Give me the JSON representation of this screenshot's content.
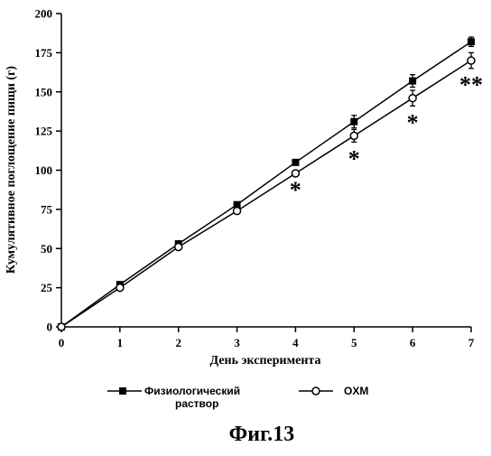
{
  "chart_data": {
    "type": "line",
    "xlabel": "День эксперимента",
    "ylabel": "Кумулятивное поглощение пищи (г)",
    "x": [
      0,
      1,
      2,
      3,
      4,
      5,
      6,
      7
    ],
    "xlim": [
      0,
      7
    ],
    "ylim": [
      0,
      200
    ],
    "xticks": [
      "0",
      "1",
      "2",
      "3",
      "4",
      "5",
      "6",
      "7"
    ],
    "yticks": [
      "0",
      "25",
      "50",
      "75",
      "100",
      "125",
      "150",
      "175",
      "200"
    ],
    "grid": false,
    "legend_position": "bottom",
    "series": [
      {
        "name": "Физиологический раствор",
        "marker": "filled-square",
        "values": [
          0,
          27,
          53,
          78,
          105,
          131,
          157,
          182
        ],
        "errors": [
          0,
          0,
          0,
          0,
          0,
          4,
          4,
          3
        ]
      },
      {
        "name": "OXM",
        "marker": "open-circle",
        "values": [
          0,
          25,
          51,
          74,
          98,
          122,
          146,
          170
        ],
        "errors": [
          0,
          0,
          0,
          0,
          0,
          4,
          5,
          5
        ]
      }
    ],
    "annotations": [
      {
        "x": 4,
        "label": "*"
      },
      {
        "x": 5,
        "label": "*"
      },
      {
        "x": 6,
        "label": "*"
      },
      {
        "x": 7,
        "label": "**"
      }
    ],
    "legend": {
      "series1_line1": "Физиологический",
      "series1_line2": "раствор",
      "series2": "OXM"
    }
  },
  "caption": "Фиг.13"
}
